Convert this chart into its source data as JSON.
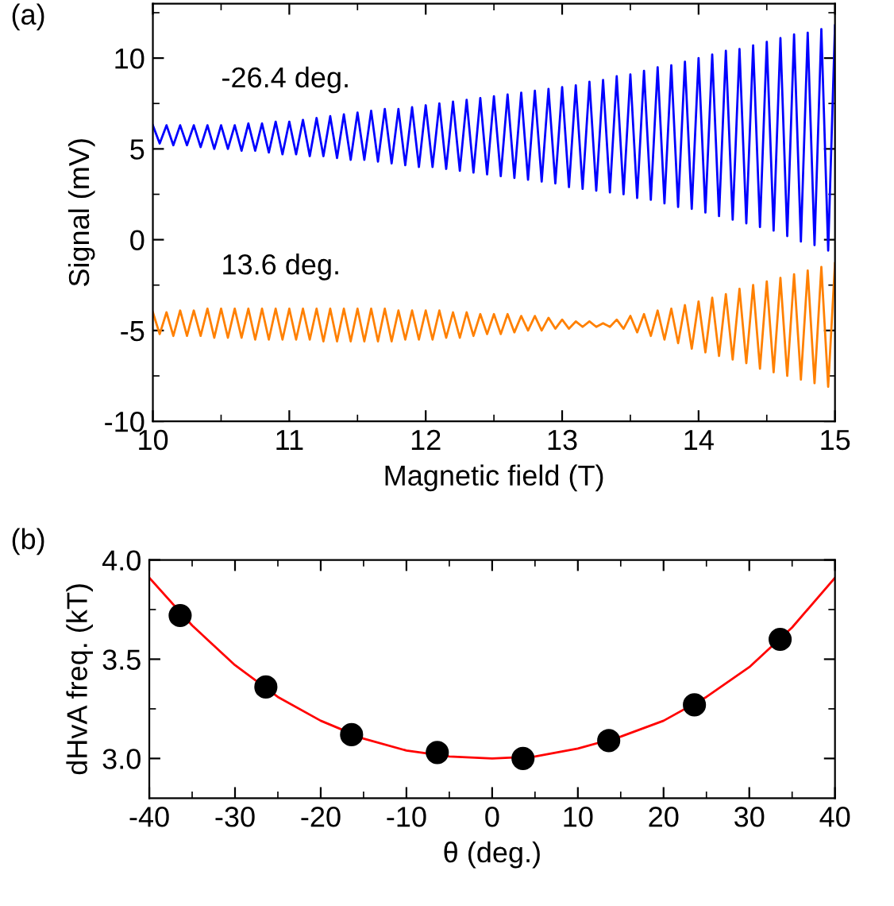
{
  "chart_data": [
    {
      "type": "line",
      "title": "(a)",
      "xlabel": "Magnetic field (T)",
      "ylabel": "Signal (mV)",
      "xlim": [
        10,
        15
      ],
      "xticks": [
        10,
        11,
        12,
        13,
        14,
        15
      ],
      "ylim": [
        -10,
        13
      ],
      "yticks": [
        -10,
        -5,
        0,
        5,
        10
      ],
      "grid": false,
      "legend": false,
      "marker": "none",
      "line_style": "solid",
      "x": [
        10.0,
        10.05,
        10.1,
        10.15,
        10.2,
        10.25,
        10.3,
        10.35,
        10.4,
        10.45,
        10.5,
        10.55,
        10.6,
        10.65,
        10.7,
        10.75,
        10.8,
        10.85,
        10.9,
        10.95,
        11.0,
        11.05,
        11.1,
        11.15,
        11.2,
        11.25,
        11.3,
        11.35,
        11.4,
        11.45,
        11.5,
        11.55,
        11.6,
        11.65,
        11.7,
        11.75,
        11.8,
        11.85,
        11.9,
        11.95,
        12.0,
        12.05,
        12.1,
        12.15,
        12.2,
        12.25,
        12.3,
        12.35,
        12.4,
        12.45,
        12.5,
        12.55,
        12.6,
        12.65,
        12.7,
        12.75,
        12.8,
        12.85,
        12.9,
        12.95,
        13.0,
        13.05,
        13.1,
        13.15,
        13.2,
        13.25,
        13.3,
        13.35,
        13.4,
        13.45,
        13.5,
        13.55,
        13.6,
        13.65,
        13.7,
        13.75,
        13.8,
        13.85,
        13.9,
        13.95,
        14.0,
        14.05,
        14.1,
        14.15,
        14.2,
        14.25,
        14.3,
        14.35,
        14.4,
        14.45,
        14.5,
        14.55,
        14.6,
        14.65,
        14.7,
        14.75,
        14.8,
        14.85,
        14.9,
        14.95,
        15.0
      ],
      "series": [
        {
          "name": "-26.4 deg.",
          "color": "#0000ff",
          "values": [
            6.3,
            5.3,
            6.3,
            5.2,
            6.3,
            5.2,
            6.3,
            5.1,
            6.3,
            5.0,
            6.3,
            5.0,
            6.3,
            4.9,
            6.4,
            4.9,
            6.4,
            4.8,
            6.5,
            4.7,
            6.5,
            4.7,
            6.6,
            4.6,
            6.7,
            4.6,
            6.8,
            4.5,
            6.9,
            4.4,
            7.0,
            4.4,
            7.1,
            4.3,
            7.2,
            4.2,
            7.2,
            4.1,
            7.3,
            4.0,
            7.4,
            4.0,
            7.5,
            3.9,
            7.6,
            3.8,
            7.7,
            3.7,
            7.8,
            3.6,
            7.9,
            3.5,
            8.0,
            3.4,
            8.1,
            3.3,
            8.2,
            3.2,
            8.3,
            3.1,
            8.4,
            2.9,
            8.5,
            2.8,
            8.7,
            2.7,
            8.8,
            2.6,
            9.0,
            2.5,
            9.1,
            2.3,
            9.3,
            2.2,
            9.5,
            2.0,
            9.6,
            1.8,
            9.8,
            1.7,
            10.0,
            1.5,
            10.2,
            1.3,
            10.4,
            1.1,
            10.5,
            0.9,
            10.7,
            0.7,
            10.9,
            0.5,
            11.1,
            0.2,
            11.3,
            -0.1,
            11.4,
            -0.3,
            11.6,
            -0.6,
            11.8
          ]
        },
        {
          "name": "13.6 deg.",
          "color": "#ff8000",
          "values": [
            -4.0,
            -5.2,
            -4.0,
            -5.3,
            -3.9,
            -5.3,
            -3.9,
            -5.3,
            -3.8,
            -5.4,
            -3.8,
            -5.4,
            -3.8,
            -5.4,
            -3.8,
            -5.5,
            -3.8,
            -5.5,
            -3.8,
            -5.5,
            -3.8,
            -5.5,
            -3.8,
            -5.5,
            -3.8,
            -5.6,
            -3.8,
            -5.6,
            -3.8,
            -5.6,
            -3.8,
            -5.6,
            -3.8,
            -5.6,
            -3.8,
            -5.6,
            -3.9,
            -5.5,
            -3.9,
            -5.5,
            -3.9,
            -5.5,
            -3.9,
            -5.4,
            -4.0,
            -5.4,
            -4.0,
            -5.3,
            -4.1,
            -5.2,
            -4.1,
            -5.2,
            -4.1,
            -5.1,
            -4.2,
            -5.0,
            -4.2,
            -5.0,
            -4.3,
            -4.9,
            -4.4,
            -4.9,
            -4.5,
            -4.8,
            -4.5,
            -4.8,
            -4.6,
            -4.8,
            -4.4,
            -4.9,
            -4.2,
            -5.1,
            -4.1,
            -5.3,
            -3.9,
            -5.5,
            -3.8,
            -5.7,
            -3.6,
            -6.0,
            -3.4,
            -6.2,
            -3.2,
            -6.4,
            -3.0,
            -6.6,
            -2.7,
            -6.8,
            -2.5,
            -7.1,
            -2.3,
            -7.3,
            -2.1,
            -7.5,
            -1.9,
            -7.7,
            -1.7,
            -7.9,
            -1.5,
            -8.1,
            -1.3
          ]
        }
      ]
    },
    {
      "type": "scatter",
      "title": "(b)",
      "xlabel": "θ (deg.)",
      "ylabel": "dHvA freq. (kT)",
      "xlim": [
        -40,
        40
      ],
      "xticks": [
        -40,
        -30,
        -20,
        -10,
        0,
        10,
        20,
        30,
        40
      ],
      "ylim": [
        2.8,
        4.0
      ],
      "yticks": [
        {
          "value": 3.0,
          "label": "3.0"
        },
        {
          "value": 3.5,
          "label": "3.5"
        },
        {
          "value": 4.0,
          "label": "4.0"
        }
      ],
      "grid": false,
      "legend": false,
      "series": [
        {
          "type": "line",
          "color": "#ff0000",
          "marker": "none",
          "line_style": "solid",
          "x": [
            -40,
            -35,
            -30,
            -25,
            -20,
            -15,
            -10,
            -5,
            0,
            5,
            10,
            15,
            20,
            25,
            30,
            35,
            40
          ],
          "values": [
            3.91,
            3.67,
            3.47,
            3.31,
            3.19,
            3.1,
            3.04,
            3.01,
            3.0,
            3.01,
            3.05,
            3.11,
            3.19,
            3.31,
            3.46,
            3.66,
            3.91
          ]
        },
        {
          "type": "scatter",
          "color": "#000000",
          "marker": "circle",
          "x": [
            -36.4,
            -26.4,
            -16.4,
            -6.4,
            3.6,
            13.6,
            23.6,
            33.6
          ],
          "values": [
            3.72,
            3.36,
            3.12,
            3.03,
            3.0,
            3.09,
            3.27,
            3.6
          ]
        }
      ]
    }
  ]
}
